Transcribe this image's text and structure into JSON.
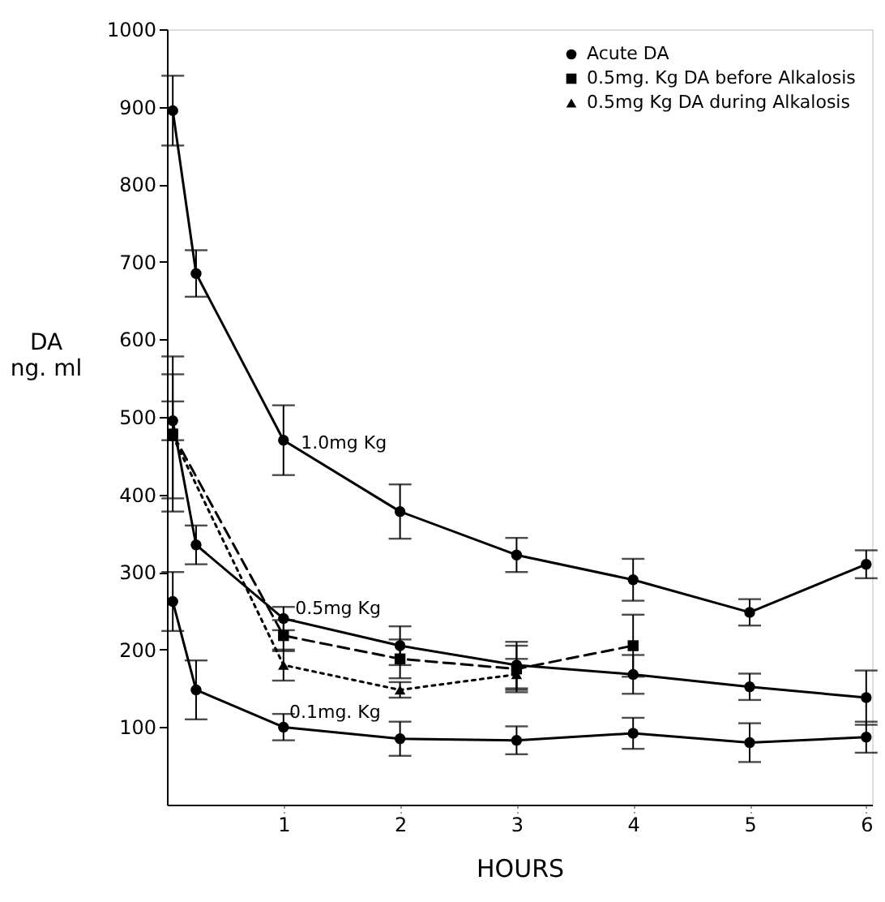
{
  "chart_data": {
    "type": "line",
    "xlabel": "HOURS",
    "ylabel": "DA\nng. ml",
    "xlim": [
      0,
      6.05
    ],
    "ylim": [
      0,
      1000
    ],
    "xticks": [
      {
        "value": 1,
        "label": "1"
      },
      {
        "value": 2,
        "label": "2"
      },
      {
        "value": 3,
        "label": "3"
      },
      {
        "value": 4,
        "label": "4"
      },
      {
        "value": 5,
        "label": "5"
      },
      {
        "value": 6,
        "label": "6"
      }
    ],
    "yticks": [
      {
        "value": 100,
        "label": "100"
      },
      {
        "value": 200,
        "label": "200"
      },
      {
        "value": 300,
        "label": "300"
      },
      {
        "value": 400,
        "label": "400"
      },
      {
        "value": 500,
        "label": "500"
      },
      {
        "value": 600,
        "label": "600"
      },
      {
        "value": 700,
        "label": "700"
      },
      {
        "value": 800,
        "label": "800"
      },
      {
        "value": 900,
        "label": "900"
      },
      {
        "value": 1000,
        "label": "1000"
      }
    ],
    "grid": false,
    "legend": "top right",
    "series": [
      {
        "name": "Acute DA",
        "color": "#000000",
        "marker": "circle",
        "line_style": "solid",
        "x": [
          0.05,
          0.25,
          1,
          2,
          3,
          4,
          5,
          6
        ],
        "values": [
          895,
          685,
          470,
          378,
          322,
          290,
          248,
          310
        ],
        "errors": [
          45,
          30,
          45,
          35,
          22,
          27,
          17,
          18
        ]
      },
      {
        "color": "#000000",
        "marker": "circle",
        "line_style": "solid",
        "x": [
          0.05,
          0.25,
          1,
          2,
          3,
          4,
          5,
          6
        ],
        "values": [
          495,
          335,
          240,
          205,
          180,
          168,
          152,
          138
        ],
        "errors": [
          25,
          25,
          15,
          25,
          30,
          25,
          17,
          35
        ]
      },
      {
        "color": "#000000",
        "marker": "circle",
        "line_style": "solid",
        "x": [
          0.05,
          0.25,
          1,
          2,
          3,
          4,
          5,
          6
        ],
        "values": [
          262,
          148,
          100,
          85,
          83,
          92,
          80,
          87
        ],
        "errors": [
          38,
          38,
          17,
          22,
          18,
          20,
          25,
          20
        ]
      },
      {
        "name": "0.5mg. Kg DA before Alkalosis",
        "color": "#000000",
        "marker": "square",
        "line_style": "dashed",
        "x": [
          0.05,
          1,
          2,
          3,
          4
        ],
        "values": [
          478,
          218,
          188,
          175,
          205
        ],
        "errors": [
          100,
          20,
          25,
          30,
          40
        ]
      },
      {
        "name": "0.5mg Kg DA during Alkalosis",
        "color": "#000000",
        "marker": "triangle",
        "line_style": "dotted",
        "x": [
          0.05,
          1,
          2,
          3
        ],
        "values": [
          475,
          180,
          148,
          168
        ],
        "errors": [
          80,
          20,
          10,
          20
        ]
      }
    ],
    "annotations": [
      {
        "text": "1.0mg Kg",
        "x": 1.15,
        "y": 465
      },
      {
        "text": "0.5mg Kg",
        "x": 1.1,
        "y": 252
      },
      {
        "text": "0.1mg. Kg",
        "x": 1.05,
        "y": 118
      }
    ]
  }
}
